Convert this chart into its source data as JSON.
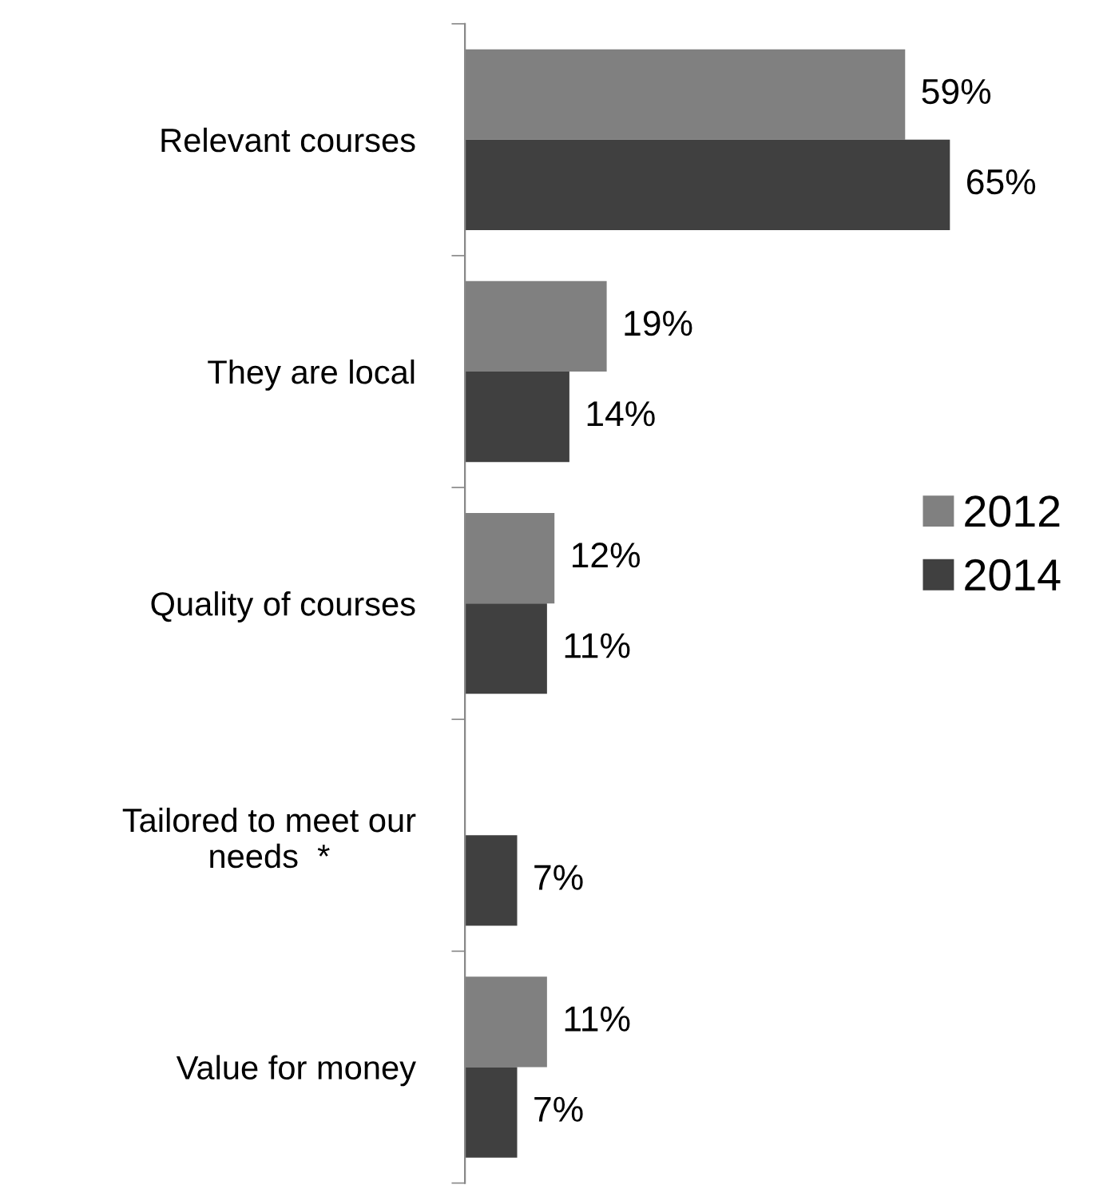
{
  "chart_data": {
    "type": "bar",
    "orientation": "horizontal",
    "categories": [
      "Relevant courses",
      "They are local",
      "Quality of courses",
      "Tailored to meet our\nneeds  *",
      "Value for money"
    ],
    "series": [
      {
        "name": "2012",
        "color": "#808080",
        "values": [
          59,
          19,
          12,
          null,
          11
        ],
        "value_labels": [
          "59%",
          "19%",
          "12%",
          null,
          "11%"
        ]
      },
      {
        "name": "2014",
        "color": "#404040",
        "values": [
          65,
          14,
          11,
          7,
          7
        ],
        "value_labels": [
          "65%",
          "14%",
          "11%",
          "7%",
          "7%"
        ]
      }
    ],
    "legend": "right",
    "grid": false
  }
}
